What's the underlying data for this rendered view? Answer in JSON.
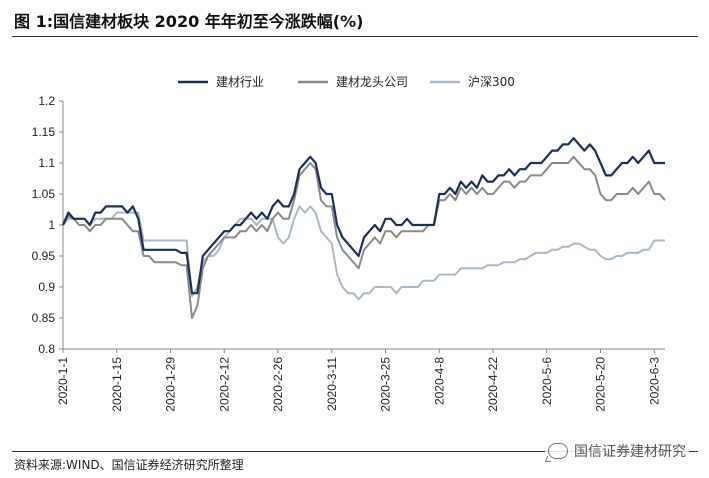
{
  "header": {
    "title": "图 1:国信建材板块 2020 年年初至今涨跌幅(%)"
  },
  "footer": {
    "source": "资料来源:WIND、国信证券经济研究所整理"
  },
  "watermark": {
    "text": "国信证券建材研究",
    "icon": "wechat-icon"
  },
  "colors": {
    "series1": "#1a3057",
    "series2": "#8a8a8a",
    "series3": "#a9b8c8",
    "rule": "#333333"
  },
  "chart_data": {
    "type": "line",
    "title": "",
    "xlabel": "",
    "ylabel": "",
    "ylim": [
      0.8,
      1.2
    ],
    "yticks": [
      "1.2",
      "1.15",
      "1.1",
      "1.05",
      "1",
      "0.95",
      "0.9",
      "0.85",
      "0.8"
    ],
    "xticks": [
      "2020-1-1",
      "2020-1-15",
      "2020-1-29",
      "2020-2-12",
      "2020-2-26",
      "2020-3-11",
      "2020-3-25",
      "2020-4-8",
      "2020-4-22",
      "2020-5-6",
      "2020-5-20",
      "2020-6-3"
    ],
    "xtick_index": [
      0,
      10,
      20,
      30,
      40,
      50,
      60,
      70,
      80,
      90,
      100,
      110
    ],
    "legend_position": "top-center",
    "grid": false,
    "series": [
      {
        "name": "建材行业",
        "values": [
          1.0,
          1.02,
          1.01,
          1.01,
          1.01,
          1.0,
          1.02,
          1.02,
          1.03,
          1.03,
          1.03,
          1.03,
          1.02,
          1.03,
          1.01,
          0.96,
          0.96,
          0.96,
          0.96,
          0.96,
          0.96,
          0.96,
          0.955,
          0.955,
          0.89,
          0.89,
          0.95,
          0.96,
          0.97,
          0.98,
          0.99,
          0.99,
          1.0,
          1.0,
          1.01,
          1.02,
          1.01,
          1.02,
          1.01,
          1.03,
          1.04,
          1.03,
          1.03,
          1.05,
          1.09,
          1.1,
          1.11,
          1.1,
          1.06,
          1.05,
          1.05,
          1.0,
          0.98,
          0.97,
          0.96,
          0.95,
          0.98,
          0.99,
          1.0,
          0.99,
          1.01,
          1.01,
          1.0,
          1.0,
          1.01,
          1.0,
          1.0,
          1.0,
          1.0,
          1.0,
          1.05,
          1.05,
          1.06,
          1.05,
          1.07,
          1.06,
          1.07,
          1.06,
          1.08,
          1.07,
          1.07,
          1.08,
          1.08,
          1.09,
          1.08,
          1.09,
          1.09,
          1.1,
          1.1,
          1.1,
          1.11,
          1.12,
          1.12,
          1.13,
          1.13,
          1.14,
          1.13,
          1.12,
          1.13,
          1.12,
          1.1,
          1.08,
          1.08,
          1.09,
          1.1,
          1.1,
          1.11,
          1.1,
          1.11,
          1.12,
          1.1,
          1.1,
          1.1
        ]
      },
      {
        "name": "建材龙头公司",
        "values": [
          1.0,
          1.015,
          1.01,
          1.0,
          1.0,
          0.99,
          1.0,
          1.0,
          1.01,
          1.01,
          1.01,
          1.01,
          1.0,
          0.99,
          0.99,
          0.95,
          0.95,
          0.94,
          0.94,
          0.94,
          0.94,
          0.94,
          0.935,
          0.935,
          0.85,
          0.87,
          0.93,
          0.95,
          0.96,
          0.97,
          0.98,
          0.98,
          0.98,
          0.99,
          0.99,
          1.0,
          0.99,
          1.0,
          0.99,
          1.01,
          1.02,
          1.01,
          1.01,
          1.04,
          1.08,
          1.09,
          1.1,
          1.09,
          1.04,
          1.03,
          1.03,
          0.98,
          0.96,
          0.95,
          0.94,
          0.93,
          0.96,
          0.97,
          0.98,
          0.97,
          0.99,
          0.99,
          0.98,
          0.99,
          0.99,
          0.99,
          0.99,
          0.99,
          1.0,
          1.0,
          1.04,
          1.04,
          1.05,
          1.04,
          1.06,
          1.05,
          1.06,
          1.05,
          1.06,
          1.05,
          1.05,
          1.06,
          1.07,
          1.07,
          1.06,
          1.07,
          1.07,
          1.08,
          1.08,
          1.08,
          1.09,
          1.1,
          1.1,
          1.1,
          1.1,
          1.11,
          1.1,
          1.09,
          1.09,
          1.08,
          1.05,
          1.04,
          1.04,
          1.05,
          1.05,
          1.05,
          1.06,
          1.05,
          1.06,
          1.07,
          1.05,
          1.05,
          1.04
        ]
      },
      {
        "name": "沪深300",
        "values": [
          1.0,
          1.01,
          1.01,
          1.01,
          1.01,
          1.0,
          1.01,
          1.01,
          1.01,
          1.01,
          1.02,
          1.02,
          1.02,
          1.02,
          1.02,
          0.975,
          0.975,
          0.975,
          0.975,
          0.975,
          0.975,
          0.975,
          0.975,
          0.975,
          0.885,
          0.9,
          0.94,
          0.95,
          0.95,
          0.96,
          0.98,
          0.99,
          1.0,
          1.01,
          1.01,
          1.01,
          1.0,
          1.01,
          1.01,
          1.01,
          0.98,
          0.97,
          0.98,
          1.01,
          1.03,
          1.02,
          1.03,
          1.02,
          0.99,
          0.98,
          0.97,
          0.92,
          0.9,
          0.89,
          0.89,
          0.88,
          0.89,
          0.89,
          0.9,
          0.9,
          0.9,
          0.9,
          0.89,
          0.9,
          0.9,
          0.9,
          0.9,
          0.91,
          0.91,
          0.91,
          0.92,
          0.92,
          0.92,
          0.92,
          0.93,
          0.93,
          0.93,
          0.93,
          0.93,
          0.935,
          0.935,
          0.935,
          0.94,
          0.94,
          0.94,
          0.945,
          0.945,
          0.95,
          0.955,
          0.955,
          0.955,
          0.96,
          0.96,
          0.965,
          0.965,
          0.97,
          0.97,
          0.965,
          0.96,
          0.96,
          0.95,
          0.945,
          0.945,
          0.95,
          0.95,
          0.955,
          0.955,
          0.955,
          0.96,
          0.96,
          0.975,
          0.975,
          0.975
        ]
      }
    ]
  }
}
